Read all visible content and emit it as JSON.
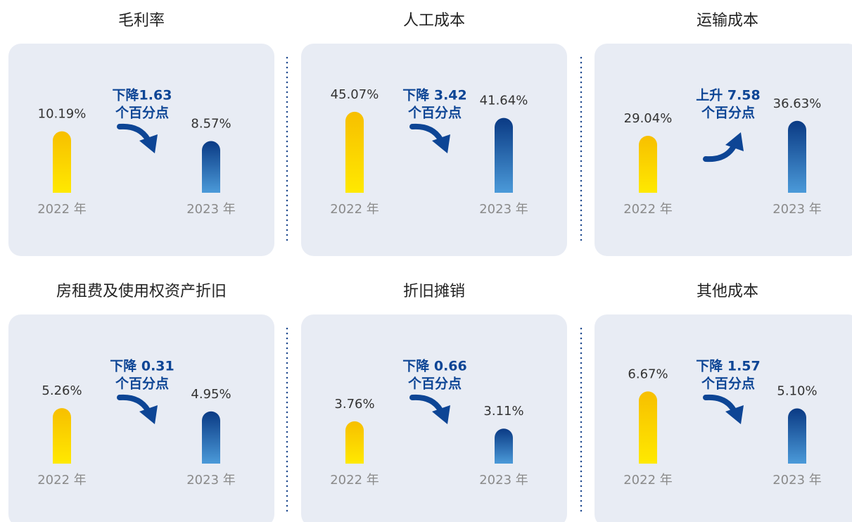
{
  "chart_data": [
    {
      "type": "bar",
      "title": "毛利率",
      "categories": [
        "2022 年",
        "2023 年"
      ],
      "values": [
        10.19,
        8.57
      ],
      "value_labels": [
        "10.19%",
        "8.57%"
      ],
      "annotation": [
        "下降1.63",
        "个百分点"
      ],
      "ylim": [
        0,
        14
      ],
      "colors": [
        [
          "#f7bf00",
          "#ffe900"
        ],
        [
          "#0a3a84",
          "#4b9ad9"
        ]
      ]
    },
    {
      "type": "bar",
      "title": "人工成本",
      "categories": [
        "2022 年",
        "2023 年"
      ],
      "values": [
        45.07,
        41.64
      ],
      "value_labels": [
        "45.07%",
        "41.64%"
      ],
      "annotation": [
        "下降 3.42",
        "个百分点"
      ],
      "ylim": [
        0,
        47
      ],
      "colors": [
        [
          "#f7bf00",
          "#ffe900"
        ],
        [
          "#0a3a84",
          "#4b9ad9"
        ]
      ]
    },
    {
      "type": "bar",
      "title": "运输成本",
      "categories": [
        "2022 年",
        "2023 年"
      ],
      "values": [
        29.04,
        36.63
      ],
      "value_labels": [
        "29.04%",
        "36.63%"
      ],
      "annotation": [
        "上升 7.58",
        "个百分点"
      ],
      "ylim": [
        0,
        43
      ],
      "colors": [
        [
          "#f7bf00",
          "#ffe900"
        ],
        [
          "#0a3a84",
          "#4b9ad9"
        ]
      ]
    },
    {
      "type": "bar",
      "title": "房租费及使用权资产折旧",
      "categories": [
        "2022 年",
        "2023 年"
      ],
      "values": [
        5.26,
        4.95
      ],
      "value_labels": [
        "5.26%",
        "4.95%"
      ],
      "annotation": [
        "下降 0.31",
        "个百分点"
      ],
      "ylim": [
        0,
        8
      ],
      "colors": [
        [
          "#f7bf00",
          "#ffe900"
        ],
        [
          "#0a3a84",
          "#4b9ad9"
        ]
      ]
    },
    {
      "type": "bar",
      "title": "折旧摊销",
      "categories": [
        "2022 年",
        "2023 年"
      ],
      "values": [
        3.76,
        3.11
      ],
      "value_labels": [
        "3.76%",
        "3.11%"
      ],
      "annotation": [
        "下降 0.66",
        "个百分点"
      ],
      "ylim": [
        0,
        7.5
      ],
      "colors": [
        [
          "#f7bf00",
          "#ffe900"
        ],
        [
          "#0a3a84",
          "#4b9ad9"
        ]
      ]
    },
    {
      "type": "bar",
      "title": "其他成本",
      "categories": [
        "2022 年",
        "2023 年"
      ],
      "values": [
        6.67,
        5.1
      ],
      "value_labels": [
        "6.67%",
        "5.10%"
      ],
      "annotation": [
        "下降 1.57",
        "个百分点"
      ],
      "ylim": [
        0,
        7.8
      ],
      "colors": [
        [
          "#f7bf00",
          "#ffe900"
        ],
        [
          "#0a3a84",
          "#4b9ad9"
        ]
      ]
    }
  ]
}
